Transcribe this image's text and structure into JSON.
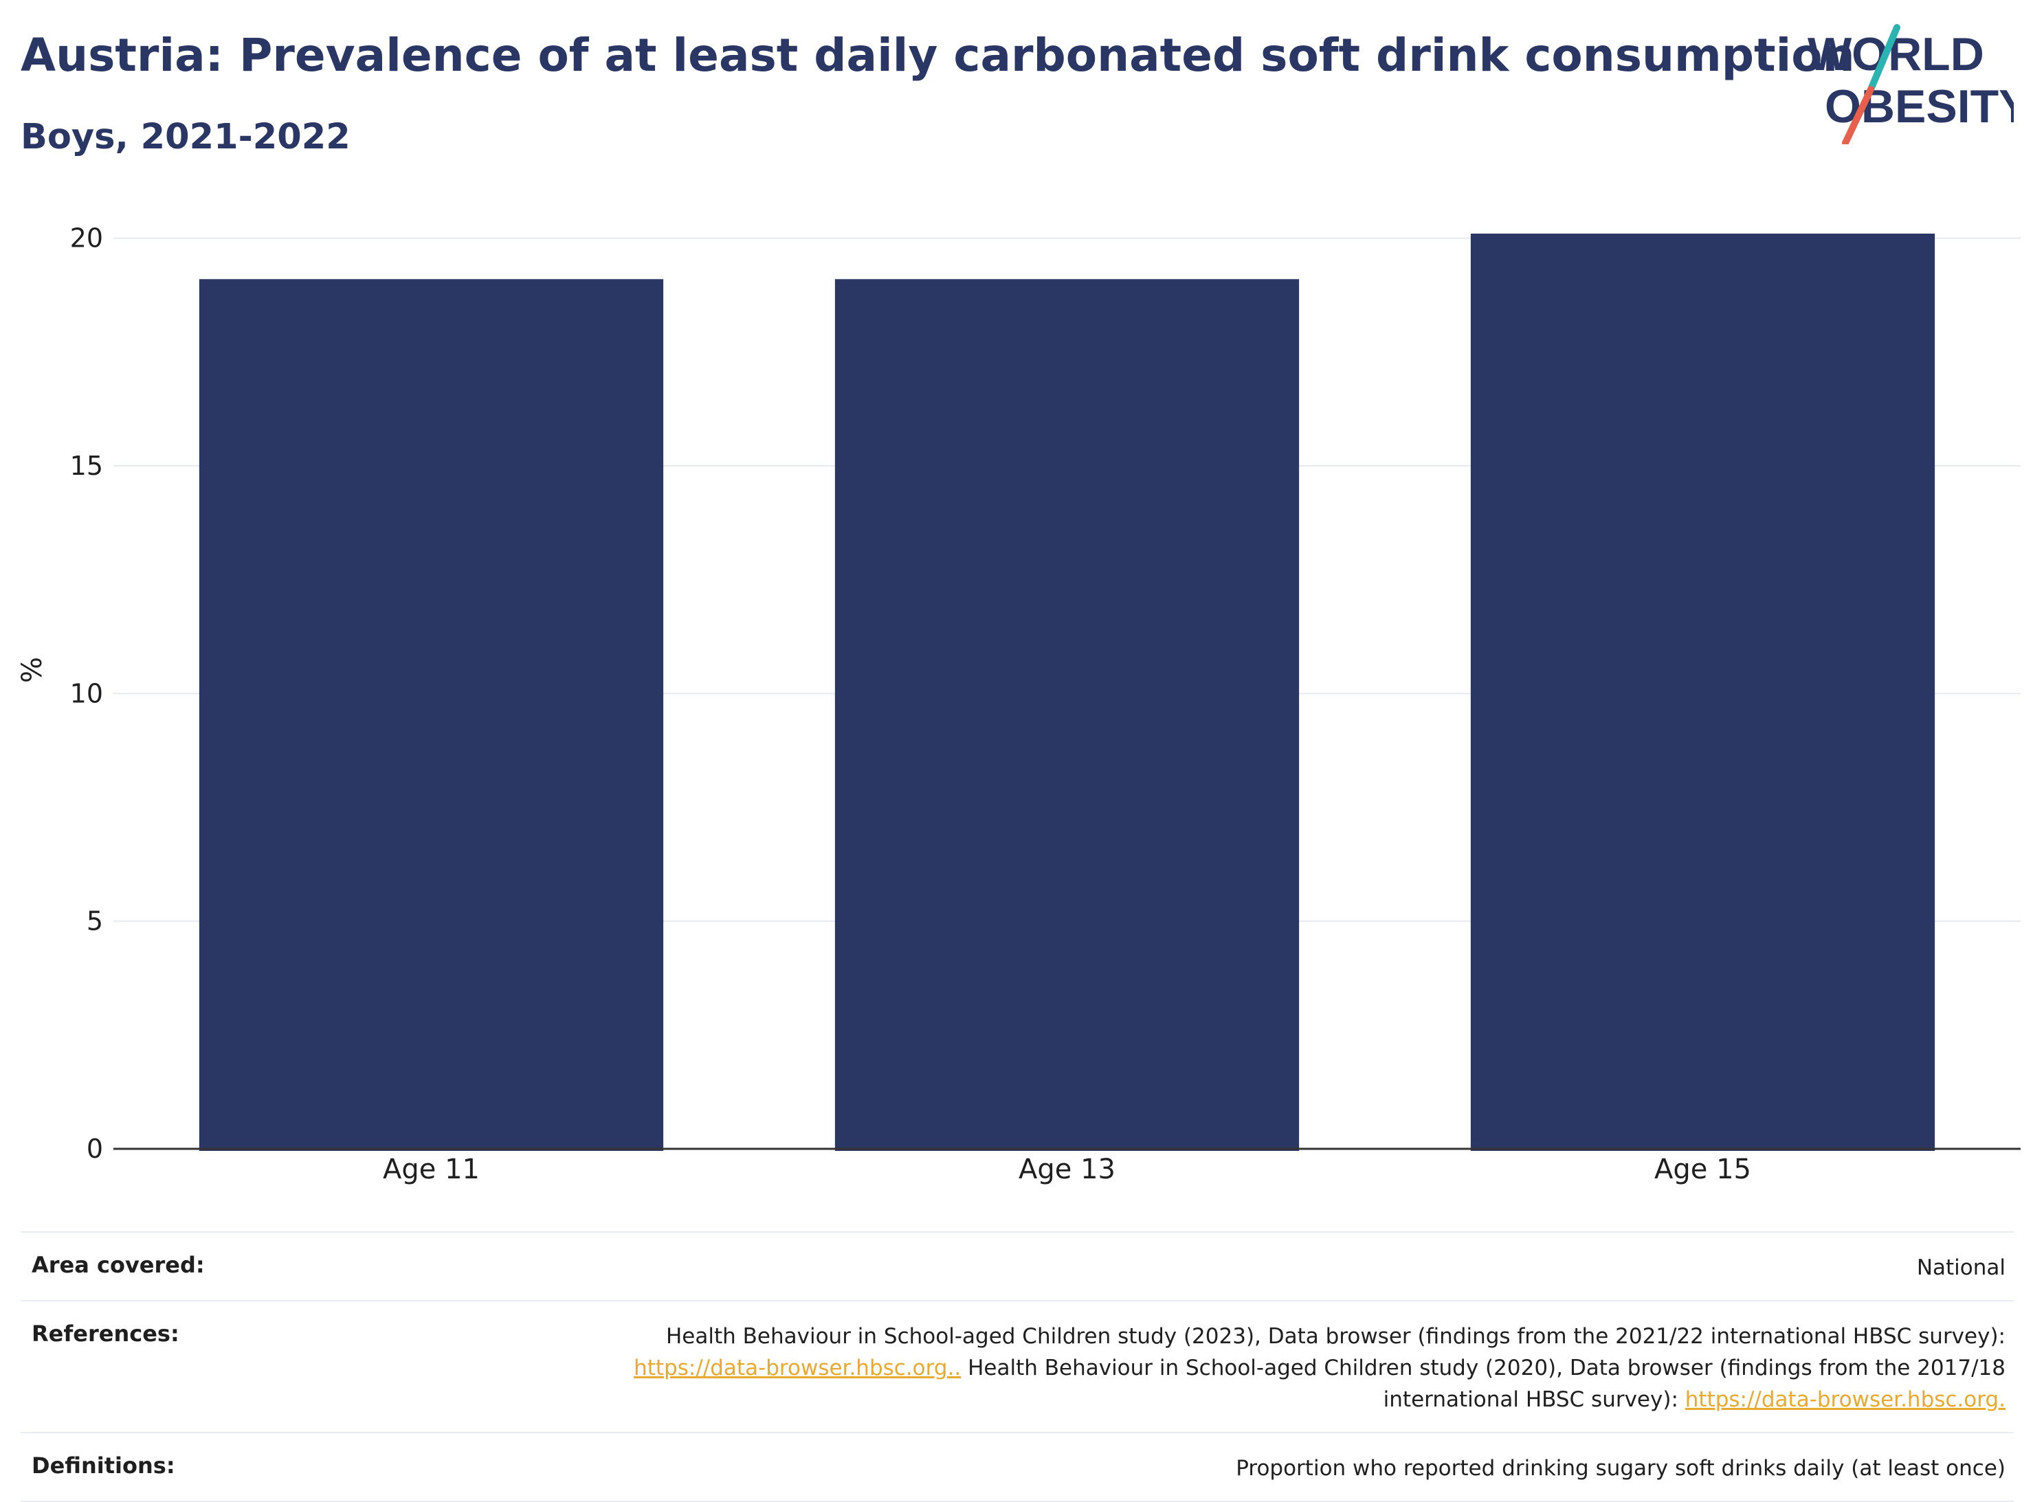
{
  "header": {
    "title": "Austria: Prevalence of at least daily carbonated soft drink consumption",
    "subtitle": "Boys, 2021-2022"
  },
  "logo": {
    "line1": "WORLD",
    "line2": "OBESITY",
    "colors": {
      "text": "#2a3764",
      "slash_top": "#2bb3b1",
      "slash_bottom": "#e8604c"
    }
  },
  "chart_data": {
    "type": "bar",
    "categories": [
      "Age 11",
      "Age 13",
      "Age 15"
    ],
    "values": [
      19.1,
      19.1,
      20.1
    ],
    "ylabel": "%",
    "yticks": [
      0,
      5,
      10,
      15,
      20
    ],
    "ylim": [
      0,
      20.1
    ],
    "grid": true,
    "bar_color": "#2a3764"
  },
  "notes": {
    "area": {
      "label": "Area covered:",
      "value": "National"
    },
    "references": {
      "label": "References:",
      "text1": "Health Behaviour in School-aged Children study (2023), Data browser (findings from the 2021/22 international HBSC survey):",
      "link1": "https://data-browser.hbsc.org..",
      "text2": " Health Behaviour in School-aged Children study (2020), Data browser (findings from the 2017/18",
      "text3": "international HBSC survey): ",
      "link2": "https://data-browser.hbsc.org."
    },
    "definitions": {
      "label": "Definitions:",
      "value": "Proportion who reported drinking sugary soft drinks daily (at least once)"
    }
  }
}
